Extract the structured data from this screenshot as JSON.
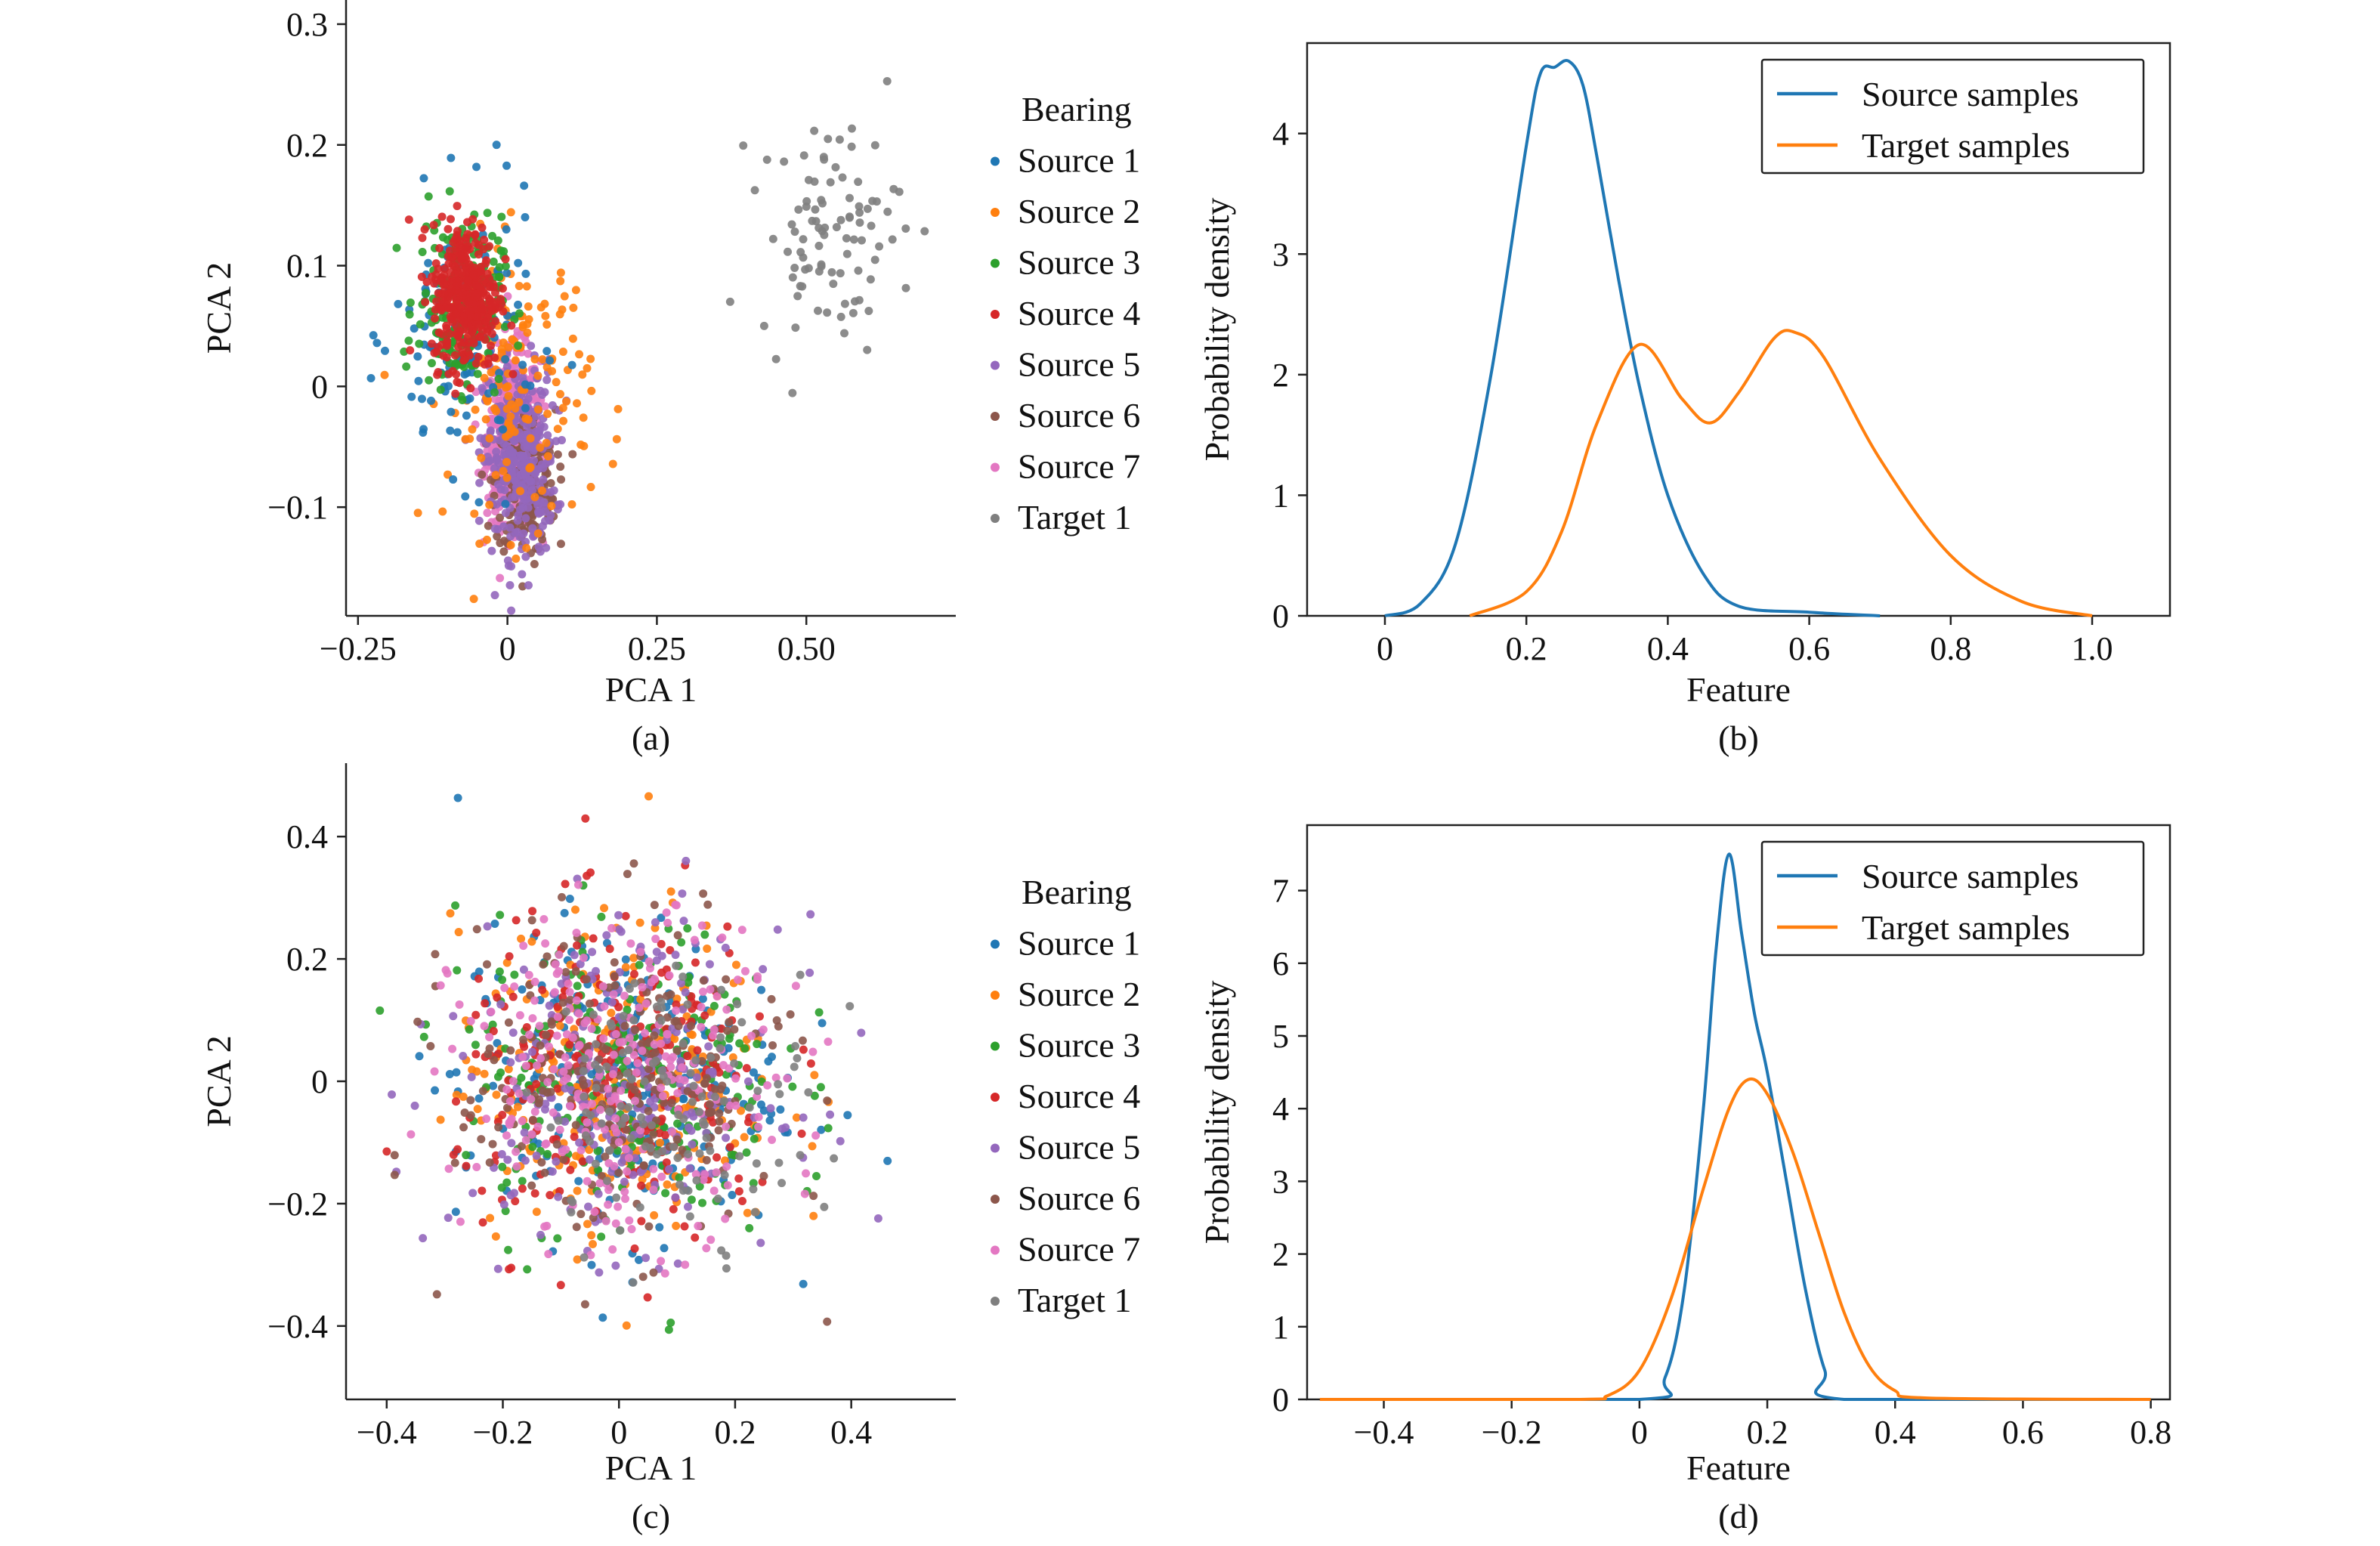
{
  "chart_data": [
    {
      "id": "a",
      "type": "scatter",
      "caption": "(a)",
      "xlabel": "PCA 1",
      "ylabel": "PCA 2",
      "xlim": [
        -0.27,
        0.75
      ],
      "ylim": [
        -0.19,
        0.32
      ],
      "xticks": [
        -0.25,
        0,
        0.25,
        0.5
      ],
      "xticklabels": [
        "−0.25",
        "0",
        "0.25",
        "0.50"
      ],
      "yticks": [
        -0.1,
        0,
        0.1,
        0.2,
        0.3
      ],
      "yticklabels": [
        "−0.1",
        "0",
        "0.1",
        "0.2",
        "0.3"
      ],
      "legend_title": "Bearing",
      "legend_position": "right",
      "series": [
        {
          "name": "Source 1",
          "color": "#1f77b4",
          "center": [
            -0.07,
            0.04
          ],
          "spread": [
            0.06,
            0.055
          ],
          "n": 140
        },
        {
          "name": "Source 2",
          "color": "#ff7f0e",
          "center": [
            0.02,
            0.0
          ],
          "spread": [
            0.06,
            0.06
          ],
          "n": 160
        },
        {
          "name": "Source 3",
          "color": "#2ca02c",
          "center": [
            -0.08,
            0.07
          ],
          "spread": [
            0.035,
            0.035
          ],
          "n": 200
        },
        {
          "name": "Source 4",
          "color": "#d62728",
          "center": [
            -0.07,
            0.075
          ],
          "spread": [
            0.028,
            0.03
          ],
          "n": 360
        },
        {
          "name": "Source 5",
          "color": "#9467bd",
          "center": [
            0.02,
            -0.06
          ],
          "spread": [
            0.03,
            0.04
          ],
          "n": 320
        },
        {
          "name": "Source 6",
          "color": "#8c564b",
          "center": [
            0.03,
            -0.08
          ],
          "spread": [
            0.025,
            0.03
          ],
          "n": 220
        },
        {
          "name": "Source 7",
          "color": "#e377c2",
          "center": [
            0.01,
            -0.04
          ],
          "spread": [
            0.022,
            0.035
          ],
          "n": 520
        },
        {
          "name": "Target 1",
          "color": "#7f7f7f",
          "center": [
            0.54,
            0.13
          ],
          "spread": [
            0.06,
            0.045
          ],
          "n": 95
        }
      ]
    },
    {
      "id": "b",
      "type": "line",
      "caption": "(b)",
      "xlabel": "Feature",
      "ylabel": "Probability density",
      "xlim": [
        -0.11,
        1.11
      ],
      "ylim": [
        0,
        4.75
      ],
      "xticks": [
        0,
        0.2,
        0.4,
        0.6,
        0.8,
        1.0
      ],
      "xticklabels": [
        "0",
        "0.2",
        "0.4",
        "0.6",
        "0.8",
        "1.0"
      ],
      "yticks": [
        0,
        1,
        2,
        3,
        4
      ],
      "yticklabels": [
        "0",
        "1",
        "2",
        "3",
        "4"
      ],
      "legend_position": "top-right",
      "series": [
        {
          "name": "Source samples",
          "color": "#1f77b4",
          "x": [
            0,
            0.05,
            0.1,
            0.15,
            0.2,
            0.22,
            0.24,
            0.26,
            0.28,
            0.3,
            0.33,
            0.36,
            0.4,
            0.45,
            0.5,
            0.6,
            0.7
          ],
          "y": [
            0.0,
            0.1,
            0.6,
            2.0,
            3.9,
            4.5,
            4.55,
            4.6,
            4.4,
            3.8,
            2.8,
            1.9,
            1.0,
            0.35,
            0.08,
            0.03,
            0.0
          ]
        },
        {
          "name": "Target samples",
          "color": "#ff7f0e",
          "x": [
            0.12,
            0.2,
            0.25,
            0.3,
            0.36,
            0.42,
            0.46,
            0.5,
            0.55,
            0.58,
            0.62,
            0.7,
            0.8,
            0.9,
            1.0
          ],
          "y": [
            0.0,
            0.2,
            0.7,
            1.6,
            2.25,
            1.8,
            1.6,
            1.85,
            2.3,
            2.35,
            2.15,
            1.3,
            0.5,
            0.12,
            0.0
          ]
        }
      ]
    },
    {
      "id": "c",
      "type": "scatter",
      "caption": "(c)",
      "xlabel": "PCA 1",
      "ylabel": "PCA 2",
      "xlim": [
        -0.47,
        0.58
      ],
      "ylim": [
        -0.52,
        0.52
      ],
      "xticks": [
        -0.4,
        -0.2,
        0,
        0.2,
        0.4
      ],
      "xticklabels": [
        "−0.4",
        "−0.2",
        "0",
        "0.2",
        "0.4"
      ],
      "yticks": [
        -0.4,
        -0.2,
        0,
        0.2,
        0.4
      ],
      "yticklabels": [
        "−0.4",
        "−0.2",
        "0",
        "0.2",
        "0.4"
      ],
      "legend_title": "Bearing",
      "legend_position": "right",
      "series": [
        {
          "name": "Source 1",
          "color": "#1f77b4",
          "center": [
            0.0,
            0.0
          ],
          "spread": [
            0.14,
            0.13
          ],
          "n": 240
        },
        {
          "name": "Source 2",
          "color": "#ff7f0e",
          "center": [
            0.0,
            0.0
          ],
          "spread": [
            0.14,
            0.13
          ],
          "n": 240
        },
        {
          "name": "Source 3",
          "color": "#2ca02c",
          "center": [
            0.0,
            0.0
          ],
          "spread": [
            0.14,
            0.13
          ],
          "n": 240
        },
        {
          "name": "Source 4",
          "color": "#d62728",
          "center": [
            0.0,
            0.0
          ],
          "spread": [
            0.14,
            0.13
          ],
          "n": 240
        },
        {
          "name": "Source 5",
          "color": "#9467bd",
          "center": [
            0.0,
            0.0
          ],
          "spread": [
            0.14,
            0.13
          ],
          "n": 240
        },
        {
          "name": "Source 6",
          "color": "#8c564b",
          "center": [
            0.0,
            0.0
          ],
          "spread": [
            0.14,
            0.13
          ],
          "n": 240
        },
        {
          "name": "Source 7",
          "color": "#e377c2",
          "center": [
            0.0,
            0.0
          ],
          "spread": [
            0.14,
            0.13
          ],
          "n": 260
        },
        {
          "name": "Target 1",
          "color": "#7f7f7f",
          "center": [
            0.1,
            -0.03
          ],
          "spread": [
            0.12,
            0.11
          ],
          "n": 120
        }
      ]
    },
    {
      "id": "d",
      "type": "line",
      "caption": "(d)",
      "xlabel": "Feature",
      "ylabel": "Probability density",
      "xlim": [
        -0.52,
        0.83
      ],
      "ylim": [
        0,
        7.9
      ],
      "xticks": [
        -0.4,
        -0.2,
        0,
        0.2,
        0.4,
        0.6,
        0.8
      ],
      "xticklabels": [
        "−0.4",
        "−0.2",
        "0",
        "0.2",
        "0.4",
        "0.6",
        "0.8"
      ],
      "yticks": [
        0,
        1,
        2,
        3,
        4,
        5,
        6,
        7
      ],
      "yticklabels": [
        "0",
        "1",
        "2",
        "3",
        "4",
        "5",
        "6",
        "7"
      ],
      "legend_position": "top-right",
      "series": [
        {
          "name": "Source samples",
          "color": "#1f77b4",
          "x": [
            -0.5,
            0.0,
            0.04,
            0.07,
            0.1,
            0.12,
            0.14,
            0.16,
            0.18,
            0.2,
            0.23,
            0.26,
            0.29,
            0.32,
            0.8
          ],
          "y": [
            0.0,
            0.0,
            0.3,
            1.5,
            4.0,
            6.2,
            7.5,
            6.4,
            5.3,
            4.5,
            3.0,
            1.5,
            0.4,
            0.0,
            0.0
          ]
        },
        {
          "name": "Target samples",
          "color": "#ff7f0e",
          "x": [
            -0.5,
            -0.1,
            -0.05,
            0.0,
            0.05,
            0.1,
            0.14,
            0.17,
            0.2,
            0.24,
            0.28,
            0.32,
            0.36,
            0.4,
            0.45,
            0.8
          ],
          "y": [
            0.0,
            0.0,
            0.05,
            0.4,
            1.4,
            2.9,
            4.0,
            4.4,
            4.2,
            3.4,
            2.3,
            1.2,
            0.45,
            0.12,
            0.02,
            0.0
          ]
        }
      ]
    }
  ]
}
